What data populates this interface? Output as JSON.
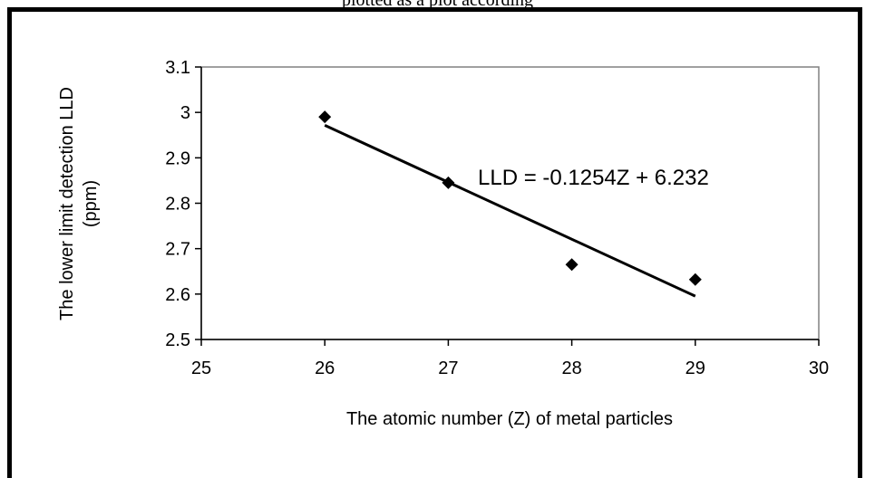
{
  "caption_fragment": "plotted as a plot according",
  "chart_data": {
    "type": "scatter",
    "x": [
      26,
      27,
      28,
      29
    ],
    "y": [
      2.99,
      2.845,
      2.665,
      2.632
    ],
    "xlim": [
      25,
      30
    ],
    "ylim": [
      2.5,
      3.1
    ],
    "x_ticks": [
      "25",
      "26",
      "27",
      "28",
      "29",
      "30"
    ],
    "y_ticks": [
      "2.5",
      "2.6",
      "2.7",
      "2.8",
      "2.9",
      "3",
      "3.1"
    ],
    "xlabel": "The atomic number (Z) of metal particles",
    "ylabel_line1": "The lower limit detection LLD",
    "ylabel_line2": "(ppm)",
    "trendline": {
      "slope": -0.1254,
      "intercept": 6.232,
      "x_range": [
        26,
        29
      ]
    },
    "annotation": "LLD = -0.1254Z + 6.232",
    "grid": false,
    "legend": "none"
  }
}
